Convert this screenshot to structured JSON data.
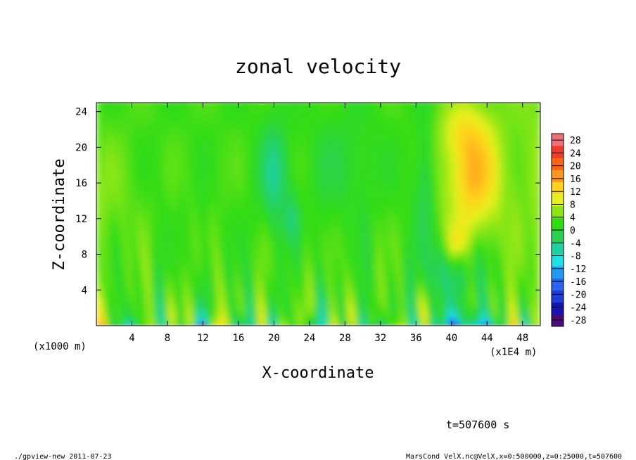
{
  "chart_data": {
    "type": "heatmap",
    "title": "zonal velocity",
    "xlabel": "X-coordinate",
    "ylabel": "Z-coordinate",
    "x_unit": "(x1000 m)",
    "x_unit_right": "(x1E4 m)",
    "xlim": [
      0,
      50
    ],
    "ylim": [
      0,
      25
    ],
    "x_ticks": [
      "4",
      "8",
      "12",
      "16",
      "20",
      "24",
      "28",
      "32",
      "36",
      "40",
      "44",
      "48"
    ],
    "y_ticks": [
      "4",
      "8",
      "12",
      "16",
      "20",
      "24"
    ],
    "colorbar": {
      "levels": [
        "28",
        "24",
        "20",
        "16",
        "12",
        "8",
        "4",
        "0",
        "-4",
        "-8",
        "-12",
        "-16",
        "-20",
        "-24",
        "-28"
      ],
      "min": -30,
      "max": 30,
      "colors": [
        "#4a0a7a",
        "#1414b4",
        "#1e3cdc",
        "#2864f0",
        "#1e9bf5",
        "#1ee1e6",
        "#1ed2a0",
        "#28d250",
        "#32dc14",
        "#8ce614",
        "#e6f01e",
        "#ffd21e",
        "#ff961e",
        "#ff6414",
        "#f03c28",
        "#f06e78"
      ]
    },
    "grid": false
  },
  "annotations": {
    "time": "t=507600 s",
    "program": "./gpview-new   2011-07-23",
    "source": "MarsCond_VelX.nc@VelX,x=0:500000,z=0:25000,t=507600"
  }
}
